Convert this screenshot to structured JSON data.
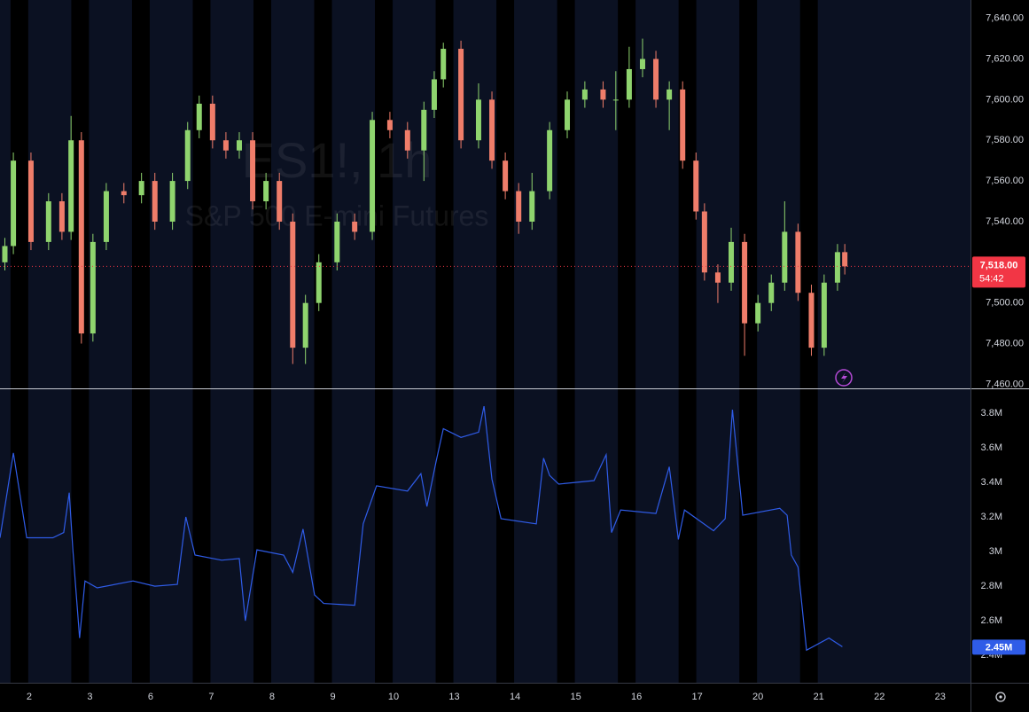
{
  "chart_data": [
    {
      "type": "candlestick",
      "title": "ES1!, 1h",
      "subtitle": "S&P 500 E-mini Futures",
      "x": [
        0.6,
        0.74,
        1.03,
        1.32,
        1.54,
        1.69,
        1.86,
        2.05,
        2.27,
        2.56,
        2.85,
        3.07,
        3.36,
        3.61,
        3.8,
        4.02,
        4.24,
        4.46,
        4.68,
        4.9,
        5.12,
        5.34,
        5.55,
        5.77,
        6.07,
        6.36,
        6.65,
        6.94,
        7.23,
        7.5,
        7.67,
        7.82,
        8.11,
        8.4,
        8.62,
        8.84,
        9.06,
        9.28,
        9.57,
        9.86,
        10.15,
        10.45,
        10.66,
        10.88,
        11.1,
        11.32,
        11.54,
        11.76,
        11.98,
        12.12,
        12.34,
        12.56,
        12.78,
        13.0,
        13.22,
        13.44,
        13.66,
        13.88,
        14.09,
        14.31,
        14.43
      ],
      "open": [
        7520,
        7528,
        7570,
        7530,
        7550,
        7535,
        7580,
        7485,
        7530,
        7555,
        7553,
        7560,
        7540,
        7560,
        7585,
        7598,
        7580,
        7575,
        7580,
        7550,
        7560,
        7540,
        7478,
        7500,
        7520,
        7540,
        7535,
        7590,
        7585,
        7575,
        7595,
        7610,
        7625,
        7580,
        7600,
        7570,
        7555,
        7540,
        7555,
        7585,
        7600,
        7605,
        7600,
        7600,
        7615,
        7620,
        7600,
        7605,
        7570,
        7545,
        7515,
        7510,
        7530,
        7490,
        7500,
        7510,
        7535,
        7505,
        7478,
        7510,
        7525
      ],
      "high": [
        7532,
        7574,
        7574,
        7554,
        7554,
        7592,
        7584,
        7534,
        7559,
        7559,
        7564,
        7564,
        7564,
        7589,
        7602,
        7602,
        7584,
        7584,
        7584,
        7564,
        7564,
        7544,
        7504,
        7524,
        7544,
        7544,
        7594,
        7594,
        7589,
        7599,
        7614,
        7628,
        7629,
        7608,
        7604,
        7574,
        7559,
        7564,
        7589,
        7604,
        7609,
        7609,
        7614,
        7626,
        7630,
        7624,
        7609,
        7609,
        7574,
        7549,
        7519,
        7537,
        7534,
        7504,
        7514,
        7550,
        7539,
        7509,
        7514,
        7529,
        7529
      ],
      "low": [
        7516,
        7524,
        7526,
        7526,
        7531,
        7531,
        7480,
        7481,
        7526,
        7549,
        7549,
        7536,
        7536,
        7556,
        7581,
        7576,
        7571,
        7571,
        7546,
        7546,
        7536,
        7470,
        7470,
        7496,
        7516,
        7531,
        7531,
        7581,
        7571,
        7560,
        7591,
        7606,
        7576,
        7576,
        7566,
        7551,
        7534,
        7536,
        7551,
        7581,
        7596,
        7596,
        7585,
        7596,
        7611,
        7596,
        7585,
        7566,
        7541,
        7511,
        7500,
        7506,
        7474,
        7486,
        7496,
        7506,
        7501,
        7474,
        7474,
        7506,
        7514
      ],
      "close": [
        7528,
        7570,
        7530,
        7550,
        7535,
        7580,
        7485,
        7530,
        7555,
        7553,
        7560,
        7540,
        7560,
        7585,
        7598,
        7580,
        7575,
        7580,
        7550,
        7560,
        7540,
        7478,
        7500,
        7520,
        7540,
        7535,
        7590,
        7585,
        7575,
        7595,
        7610,
        7625,
        7580,
        7600,
        7570,
        7555,
        7540,
        7555,
        7585,
        7600,
        7605,
        7600,
        7600,
        7615,
        7620,
        7600,
        7605,
        7570,
        7545,
        7515,
        7510,
        7530,
        7490,
        7500,
        7510,
        7535,
        7505,
        7478,
        7510,
        7525,
        7518
      ],
      "up_color": "#8fd46e",
      "down_color": "#ef7d6a",
      "xlim": [
        0.52,
        16.5
      ],
      "ylim": [
        7458,
        7649
      ],
      "yticks": [
        {
          "value": 7460,
          "label": "7,460.00"
        },
        {
          "value": 7480,
          "label": "7,480.00"
        },
        {
          "value": 7500,
          "label": "7,500.00"
        },
        {
          "value": 7520,
          "label": "7,520.00"
        },
        {
          "value": 7540,
          "label": "7,540.00"
        },
        {
          "value": 7560,
          "label": "7,560.00"
        },
        {
          "value": 7580,
          "label": "7,580.00"
        },
        {
          "value": 7600,
          "label": "7,600.00"
        },
        {
          "value": 7620,
          "label": "7,620.00"
        },
        {
          "value": 7640,
          "label": "7,640.00"
        }
      ],
      "last_price": {
        "value": 7518,
        "label": "7,518.00"
      },
      "countdown": "54:42"
    },
    {
      "type": "line",
      "x": [
        0.52,
        0.74,
        0.96,
        1.39,
        1.57,
        1.66,
        1.72,
        1.83,
        1.92,
        2.12,
        2.71,
        3.07,
        3.44,
        3.58,
        3.73,
        4.17,
        4.46,
        4.56,
        4.75,
        5.19,
        5.34,
        5.51,
        5.7,
        5.85,
        6.36,
        6.5,
        6.72,
        7.23,
        7.45,
        7.55,
        7.7,
        7.82,
        8.11,
        8.4,
        8.49,
        8.62,
        8.77,
        9.35,
        9.47,
        9.57,
        9.72,
        10.3,
        10.5,
        10.59,
        10.74,
        11.32,
        11.54,
        11.69,
        11.79,
        12.27,
        12.46,
        12.58,
        12.75,
        13.36,
        13.48,
        13.55,
        13.66,
        13.8,
        14.17,
        14.39
      ],
      "values": [
        3080000,
        3570000,
        3080000,
        3080000,
        3110000,
        3340000,
        3010000,
        2500000,
        2830000,
        2790000,
        2830000,
        2800000,
        2810000,
        3200000,
        2980000,
        2950000,
        2960000,
        2600000,
        3010000,
        2980000,
        2880000,
        3130000,
        2750000,
        2700000,
        2690000,
        3160000,
        3380000,
        3350000,
        3450000,
        3260000,
        3520000,
        3710000,
        3660000,
        3690000,
        3840000,
        3420000,
        3190000,
        3160000,
        3540000,
        3440000,
        3390000,
        3410000,
        3560000,
        3110000,
        3240000,
        3220000,
        3490000,
        3070000,
        3240000,
        3120000,
        3190000,
        3820000,
        3210000,
        3250000,
        3210000,
        2980000,
        2910000,
        2430000,
        2500000,
        2450000
      ],
      "color": "#2f5ce8",
      "xlim": [
        0.52,
        16.5
      ],
      "ylim": [
        2242000,
        3938000
      ],
      "yticks": [
        {
          "value": 2400000,
          "label": "2.4M"
        },
        {
          "value": 2600000,
          "label": "2.6M"
        },
        {
          "value": 2800000,
          "label": "2.8M"
        },
        {
          "value": 3000000,
          "label": "3M"
        },
        {
          "value": 3200000,
          "label": "3.2M"
        },
        {
          "value": 3400000,
          "label": "3.4M"
        },
        {
          "value": 3600000,
          "label": "3.6M"
        },
        {
          "value": 3800000,
          "label": "3.8M"
        }
      ],
      "xticks": [
        {
          "value": 1,
          "label": "2"
        },
        {
          "value": 2,
          "label": "3"
        },
        {
          "value": 3,
          "label": "6"
        },
        {
          "value": 4,
          "label": "7"
        },
        {
          "value": 5,
          "label": "8"
        },
        {
          "value": 6,
          "label": "9"
        },
        {
          "value": 7,
          "label": "10"
        },
        {
          "value": 8,
          "label": "13"
        },
        {
          "value": 9,
          "label": "14"
        },
        {
          "value": 10,
          "label": "15"
        },
        {
          "value": 11,
          "label": "16"
        },
        {
          "value": 12,
          "label": "17"
        },
        {
          "value": 13,
          "label": "20"
        },
        {
          "value": 14,
          "label": "21"
        },
        {
          "value": 15,
          "label": "22"
        },
        {
          "value": 16,
          "label": "23"
        }
      ],
      "last_value": {
        "value": 2450000,
        "label": "2.45M"
      }
    }
  ]
}
